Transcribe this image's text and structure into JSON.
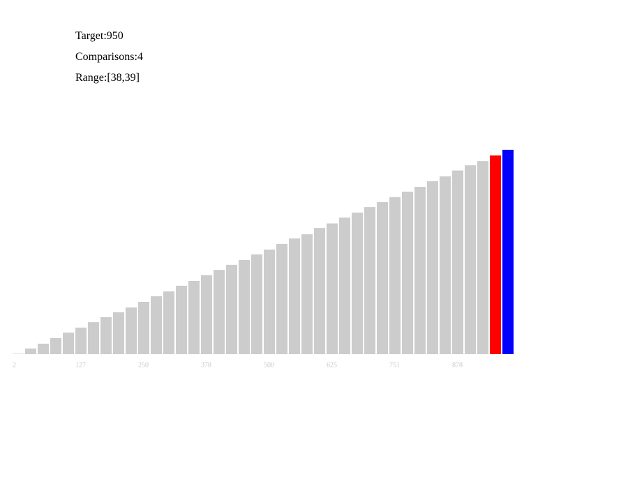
{
  "status": {
    "target": "Target:950",
    "comparisons": "Comparisons:4",
    "range": "Range:[38,39]"
  },
  "chart_data": {
    "type": "bar",
    "categories": [
      2,
      null,
      null,
      null,
      null,
      127,
      null,
      null,
      null,
      null,
      250,
      null,
      null,
      null,
      null,
      378,
      null,
      null,
      null,
      null,
      500,
      null,
      null,
      null,
      null,
      625,
      null,
      null,
      null,
      null,
      751,
      null,
      null,
      null,
      null,
      878,
      null,
      null,
      null,
      null
    ],
    "values": [
      2,
      27,
      50,
      77,
      103,
      127,
      153,
      177,
      200,
      223,
      250,
      277,
      300,
      327,
      350,
      378,
      403,
      427,
      450,
      477,
      500,
      527,
      553,
      573,
      603,
      625,
      653,
      677,
      703,
      727,
      751,
      777,
      800,
      827,
      850,
      878,
      903,
      923,
      950,
      977
    ],
    "colors": [
      "#cccccc",
      "#cccccc",
      "#cccccc",
      "#cccccc",
      "#cccccc",
      "#cccccc",
      "#cccccc",
      "#cccccc",
      "#cccccc",
      "#cccccc",
      "#cccccc",
      "#cccccc",
      "#cccccc",
      "#cccccc",
      "#cccccc",
      "#cccccc",
      "#cccccc",
      "#cccccc",
      "#cccccc",
      "#cccccc",
      "#cccccc",
      "#cccccc",
      "#cccccc",
      "#cccccc",
      "#cccccc",
      "#cccccc",
      "#cccccc",
      "#cccccc",
      "#cccccc",
      "#cccccc",
      "#cccccc",
      "#cccccc",
      "#cccccc",
      "#cccccc",
      "#cccccc",
      "#cccccc",
      "#cccccc",
      "#cccccc",
      "#ff0000",
      "#0000ff"
    ],
    "ylim": [
      0,
      1000
    ]
  }
}
